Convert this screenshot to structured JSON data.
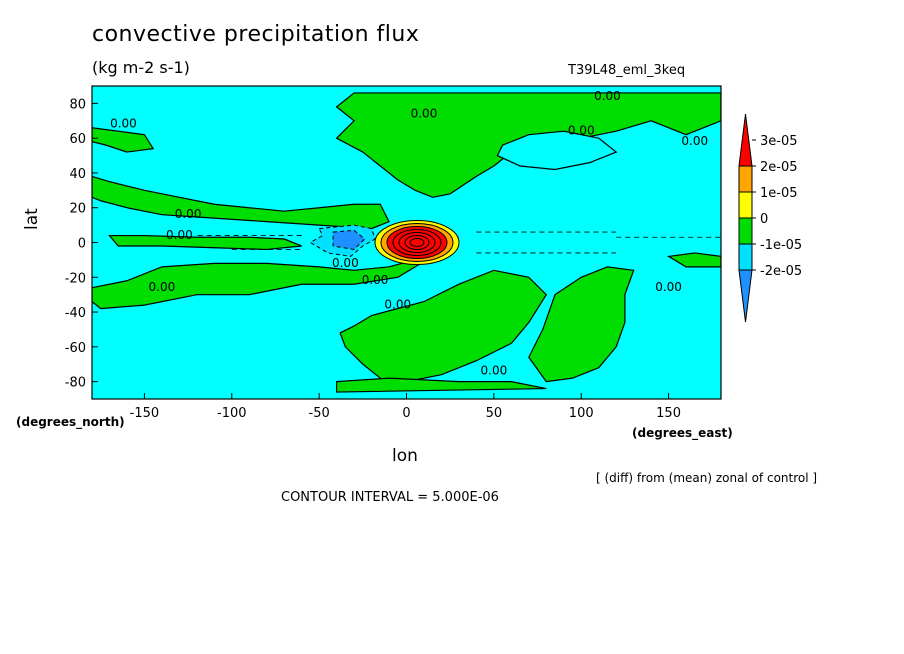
{
  "chart_data": {
    "type": "heatmap",
    "title": "convective precipitation flux",
    "units": "(kg m-2 s-1)",
    "run_id": "T39L48_eml_3keq",
    "xlabel": "lon",
    "ylabel": "lat",
    "x_unit_label": "(degrees_east)",
    "y_unit_label": "(degrees_north)",
    "xlim": [
      -180,
      180
    ],
    "ylim": [
      -90,
      90
    ],
    "x_ticks": [
      -150,
      -100,
      -50,
      0,
      50,
      100,
      150
    ],
    "y_ticks": [
      -80,
      -60,
      -40,
      -20,
      0,
      20,
      40,
      60,
      80
    ],
    "x_tick_labels": [
      "-150",
      "-100",
      "-50",
      "0",
      "50",
      "100",
      "150"
    ],
    "y_tick_labels": [
      "-80",
      "-60",
      "-40",
      "-20",
      "0",
      "20",
      "40",
      "60",
      "80"
    ],
    "colorbar": {
      "levels": [
        -2e-05,
        -1e-05,
        0,
        1e-05,
        2e-05,
        3e-05
      ],
      "labels": [
        "-2e-05",
        "-1e-05",
        "0",
        "1e-05",
        "2e-05",
        "3e-05"
      ],
      "colors": [
        "#1e90ff",
        "#00e0ff",
        "#00dd00",
        "#ffff00",
        "#ffa500",
        "#ff0000"
      ]
    },
    "background_color": "#00ffff",
    "contour_label": "0.00",
    "contour_interval_text": "CONTOUR INTERVAL = 5.000E-06",
    "annotation": "[ (diff) from (mean) zonal of control ]",
    "features": [
      {
        "name": "equatorial maximum",
        "lon": 5,
        "lat": 0,
        "value": 3e-05
      },
      {
        "name": "equatorial minimum",
        "lon": -35,
        "lat": 3,
        "value": -1.5e-05
      },
      {
        "name": "northern positive band",
        "lon_range": [
          -180,
          -20
        ],
        "lat_range": [
          10,
          40
        ],
        "value": 5e-06
      },
      {
        "name": "northern positive region",
        "lon_range": [
          -40,
          180
        ],
        "lat_range": [
          30,
          85
        ],
        "value": 5e-06
      },
      {
        "name": "southern positive region",
        "lon_range": [
          -30,
          80
        ],
        "lat_range": [
          -90,
          -15
        ],
        "value": 5e-06
      },
      {
        "name": "southeast positive region",
        "lon_range": [
          80,
          130
        ],
        "lat_range": [
          -80,
          -20
        ],
        "value": 5e-06
      }
    ],
    "grid": false,
    "legend_position": "right"
  }
}
